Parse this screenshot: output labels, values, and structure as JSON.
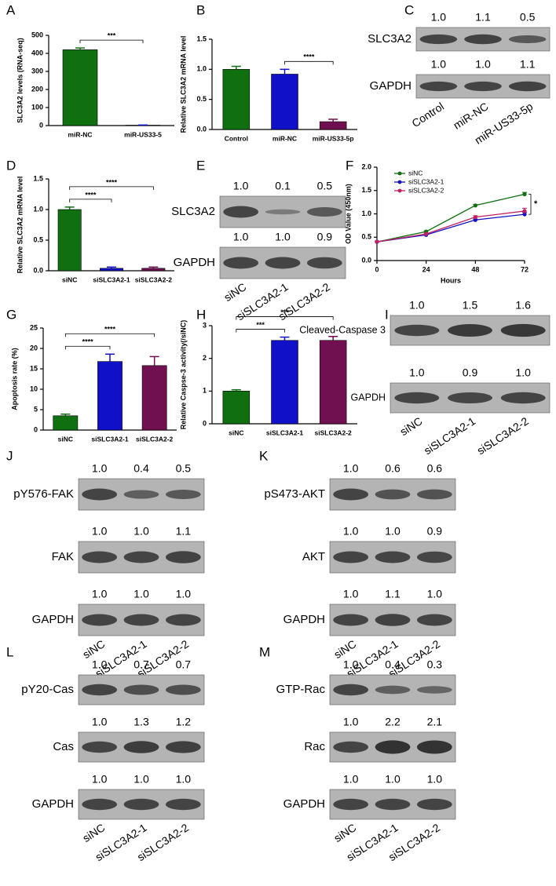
{
  "chart_data": [
    {
      "type": "bar",
      "label": "A",
      "ylabel": "SLC3A2 levels (RNA-seq)",
      "categories": [
        "miR-NC",
        "miR-US33-5"
      ],
      "values": [
        420,
        2
      ],
      "errors": [
        10,
        1
      ],
      "colors": [
        "#107010",
        "#1010c8"
      ],
      "ylim": [
        0,
        500
      ],
      "yticks": [
        0,
        100,
        200,
        300,
        400,
        500
      ],
      "annotations": [
        {
          "text": "***",
          "from": 0,
          "to": 1
        }
      ]
    },
    {
      "type": "bar",
      "label": "B",
      "ylabel": "Relative SLC3A2 mRNA level",
      "categories": [
        "Control",
        "miR-NC",
        "miR-US33-5p"
      ],
      "values": [
        1.0,
        0.92,
        0.13
      ],
      "errors": [
        0.05,
        0.08,
        0.04
      ],
      "colors": [
        "#107010",
        "#1010c8",
        "#701050"
      ],
      "ylim": [
        0,
        1.5
      ],
      "yticks": [
        {
          "value": 0,
          "label": "0.0"
        },
        {
          "value": 0.5,
          "label": "0.5"
        },
        {
          "value": 1,
          "label": "1.0"
        },
        {
          "value": 1.5,
          "label": "1.5"
        }
      ],
      "annotations": [
        {
          "text": "****",
          "from": 1,
          "to": 2
        }
      ]
    },
    {
      "type": "bar",
      "label": "D",
      "ylabel": "Relative SLC3A2 mRNA level",
      "categories": [
        "siNC",
        "siSLC3A2-1",
        "siSLC3A2-2"
      ],
      "values": [
        1.0,
        0.04,
        0.04
      ],
      "errors": [
        0.04,
        0.02,
        0.02
      ],
      "colors": [
        "#107010",
        "#1010c8",
        "#701050"
      ],
      "ylim": [
        0,
        1.5
      ],
      "yticks": [
        {
          "value": 0,
          "label": "0.0"
        },
        {
          "value": 0.5,
          "label": "0.5"
        },
        {
          "value": 1,
          "label": "1.0"
        },
        {
          "value": 1.5,
          "label": "1.5"
        }
      ],
      "annotations": [
        {
          "text": "****",
          "from": 0,
          "to": 1
        },
        {
          "text": "****",
          "from": 0,
          "to": 2
        }
      ]
    },
    {
      "type": "line",
      "label": "F",
      "ylabel": "OD Value (450nm)",
      "xlabel": "Hours",
      "x": [
        0,
        24,
        48,
        72
      ],
      "xlim": [
        0,
        72
      ],
      "xticks": [
        0,
        24,
        48,
        72
      ],
      "ylim": [
        0,
        2
      ],
      "yticks": [
        {
          "value": 0,
          "label": "0.0"
        },
        {
          "value": 0.5,
          "label": "0.5"
        },
        {
          "value": 1,
          "label": "1.0"
        },
        {
          "value": 1.5,
          "label": "1.5"
        },
        {
          "value": 2,
          "label": "2.0"
        }
      ],
      "series": [
        {
          "name": "siNC",
          "color": "#107010",
          "values": [
            0.4,
            0.62,
            1.18,
            1.42
          ],
          "errors": [
            0.02,
            0.02,
            0.02,
            0.04
          ]
        },
        {
          "name": "siSLC3A2-1",
          "color": "#1010c8",
          "values": [
            0.4,
            0.55,
            0.87,
            0.99
          ],
          "errors": [
            0.02,
            0.02,
            0.02,
            0.04
          ]
        },
        {
          "name": "siSLC3A2-2",
          "color": "#c02060",
          "values": [
            0.4,
            0.57,
            0.93,
            1.06
          ],
          "errors": [
            0.02,
            0.02,
            0.03,
            0.06
          ]
        }
      ],
      "annotations": [
        {
          "text": "*",
          "from": 0,
          "to": 1
        }
      ]
    },
    {
      "type": "bar",
      "label": "G",
      "ylabel": "Apoptosis rate (%)",
      "categories": [
        "siNC",
        "siSLC3A2-1",
        "siSLC3A2-2"
      ],
      "values": [
        3.5,
        16.8,
        15.8
      ],
      "errors": [
        0.4,
        1.8,
        2.2
      ],
      "colors": [
        "#107010",
        "#1010c8",
        "#701050"
      ],
      "ylim": [
        0,
        25
      ],
      "yticks": [
        0,
        5,
        10,
        15,
        20,
        25
      ],
      "annotations": [
        {
          "text": "****",
          "from": 0,
          "to": 1
        },
        {
          "text": "****",
          "from": 0,
          "to": 2
        }
      ]
    },
    {
      "type": "bar",
      "label": "H",
      "ylabel": "Relative Caspse-3 activity(/siNC)",
      "categories": [
        "siNC",
        "siSLC3A2-1",
        "siSLC3A2-2"
      ],
      "values": [
        1.0,
        2.55,
        2.55
      ],
      "errors": [
        0.04,
        0.1,
        0.12
      ],
      "colors": [
        "#107010",
        "#1010c8",
        "#701050"
      ],
      "ylim": [
        0,
        3
      ],
      "yticks": [
        0,
        1,
        2,
        3
      ],
      "annotations": [
        {
          "text": "***",
          "from": 0,
          "to": 1
        },
        {
          "text": "***",
          "from": 0,
          "to": 2
        }
      ]
    }
  ],
  "blots": [
    {
      "label": "C",
      "lanes": [
        "Control",
        "miR-NC",
        "miR-US33-5p"
      ],
      "rows": [
        {
          "name": "SLC3A2",
          "values": [
            1.0,
            1.1,
            0.5
          ],
          "value_labels": [
            "1.0",
            "1.1",
            "0.5"
          ]
        },
        {
          "name": "GAPDH",
          "values": [
            1.0,
            1.0,
            1.1
          ],
          "value_labels": [
            "1.0",
            "1.0",
            "1.1"
          ]
        }
      ]
    },
    {
      "label": "E",
      "lanes": [
        "siNC",
        "siSLC3A2-1",
        "siSLC3A2-2"
      ],
      "rows": [
        {
          "name": "SLC3A2",
          "values": [
            1.0,
            0.1,
            0.5
          ],
          "value_labels": [
            "1.0",
            "0.1",
            "0.5"
          ]
        },
        {
          "name": "GAPDH",
          "values": [
            1.0,
            1.0,
            0.9
          ],
          "value_labels": [
            "1.0",
            "1.0",
            "0.9"
          ]
        }
      ]
    },
    {
      "label": "I",
      "lanes": [
        "siNC",
        "siSLC3A2-1",
        "siSLC3A2-2"
      ],
      "rows": [
        {
          "name": "Cleaved-Caspase 3",
          "values": [
            1.0,
            1.5,
            1.6
          ],
          "value_labels": [
            "1.0",
            "1.5",
            "1.6"
          ]
        },
        {
          "name": "GAPDH",
          "values": [
            1.0,
            0.9,
            1.0
          ],
          "value_labels": [
            "1.0",
            "0.9",
            "1.0"
          ]
        }
      ]
    },
    {
      "label": "J",
      "lanes": [
        "siNC",
        "siSLC3A2-1",
        "siSLC3A2-2"
      ],
      "rows": [
        {
          "name": "pY576-FAK",
          "values": [
            1.0,
            0.4,
            0.5
          ],
          "value_labels": [
            "1.0",
            "0.4",
            "0.5"
          ]
        },
        {
          "name": "FAK",
          "values": [
            1.0,
            1.0,
            1.1
          ],
          "value_labels": [
            "1.0",
            "1.0",
            "1.1"
          ]
        },
        {
          "name": "GAPDH",
          "values": [
            1.0,
            1.0,
            1.0
          ],
          "value_labels": [
            "1.0",
            "1.0",
            "1.0"
          ]
        }
      ]
    },
    {
      "label": "K",
      "lanes": [
        "siNC",
        "siSLC3A2-1",
        "siSLC3A2-2"
      ],
      "rows": [
        {
          "name": "pS473-AKT",
          "values": [
            1.0,
            0.6,
            0.6
          ],
          "value_labels": [
            "1.0",
            "0.6",
            "0.6"
          ]
        },
        {
          "name": "AKT",
          "values": [
            1.0,
            1.0,
            0.9
          ],
          "value_labels": [
            "1.0",
            "1.0",
            "0.9"
          ]
        },
        {
          "name": "GAPDH",
          "values": [
            1.0,
            1.1,
            1.0
          ],
          "value_labels": [
            "1.0",
            "1.1",
            "1.0"
          ]
        }
      ]
    },
    {
      "label": "L",
      "lanes": [
        "siNC",
        "siSLC3A2-1",
        "siSLC3A2-2"
      ],
      "rows": [
        {
          "name": "pY20-Cas",
          "values": [
            1.0,
            0.7,
            0.7
          ],
          "value_labels": [
            "1.0",
            "0.7",
            "0.7"
          ]
        },
        {
          "name": "Cas",
          "values": [
            1.0,
            1.3,
            1.2
          ],
          "value_labels": [
            "1.0",
            "1.3",
            "1.2"
          ]
        },
        {
          "name": "GAPDH",
          "values": [
            1.0,
            1.0,
            1.0
          ],
          "value_labels": [
            "1.0",
            "1.0",
            "1.0"
          ]
        }
      ]
    },
    {
      "label": "M",
      "lanes": [
        "siNC",
        "siSLC3A2-1",
        "siSLC3A2-2"
      ],
      "rows": [
        {
          "name": "GTP-Rac",
          "values": [
            1.0,
            0.4,
            0.3
          ],
          "value_labels": [
            "1.0",
            "0.4",
            "0.3"
          ]
        },
        {
          "name": "Rac",
          "values": [
            1.0,
            2.2,
            2.1
          ],
          "value_labels": [
            "1.0",
            "2.2",
            "2.1"
          ]
        },
        {
          "name": "GAPDH",
          "values": [
            1.0,
            1.0,
            1.0
          ],
          "value_labels": [
            "1.0",
            "1.0",
            "1.0"
          ]
        }
      ]
    }
  ]
}
